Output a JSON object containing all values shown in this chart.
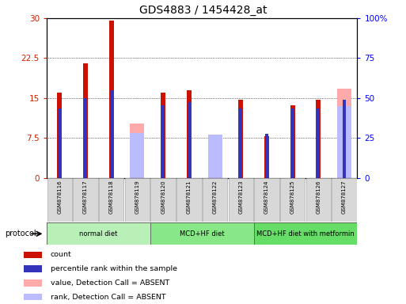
{
  "title": "GDS4883 / 1454428_at",
  "samples": [
    "GSM878116",
    "GSM878117",
    "GSM878118",
    "GSM878119",
    "GSM878120",
    "GSM878121",
    "GSM878122",
    "GSM878123",
    "GSM878124",
    "GSM878125",
    "GSM878126",
    "GSM878127"
  ],
  "count_values": [
    16.0,
    21.5,
    29.5,
    0.0,
    16.0,
    16.5,
    0.0,
    14.7,
    7.8,
    13.7,
    14.7,
    0.0
  ],
  "percentile_values": [
    13.0,
    15.0,
    16.5,
    0.0,
    13.7,
    14.3,
    0.0,
    13.0,
    0.0,
    13.0,
    13.0,
    14.7
  ],
  "absent_value_values": [
    0.0,
    0.0,
    0.0,
    10.2,
    0.0,
    0.0,
    7.9,
    0.0,
    0.0,
    0.0,
    0.0,
    16.7
  ],
  "absent_rank_values": [
    0.0,
    0.0,
    0.0,
    28.0,
    0.0,
    0.0,
    27.0,
    0.0,
    0.0,
    0.0,
    0.0,
    45.0
  ],
  "absent_blue_dot_values": [
    0.0,
    0.0,
    0.0,
    0.0,
    0.0,
    0.0,
    0.0,
    0.0,
    27.5,
    0.0,
    0.0,
    0.0
  ],
  "protocols": [
    {
      "label": "normal diet",
      "start": 0,
      "end": 4,
      "color": "#b8f0b8"
    },
    {
      "label": "MCD+HF diet",
      "start": 4,
      "end": 8,
      "color": "#88e888"
    },
    {
      "label": "MCD+HF diet with metformin",
      "start": 8,
      "end": 12,
      "color": "#66dd66"
    }
  ],
  "ylim_left": [
    0,
    30
  ],
  "ylim_right": [
    0,
    100
  ],
  "yticks_left": [
    0,
    7.5,
    15,
    22.5,
    30
  ],
  "yticks_right": [
    0,
    25,
    50,
    75,
    100
  ],
  "ytick_labels_left": [
    "0",
    "7.5",
    "15",
    "22.5",
    "30"
  ],
  "ytick_labels_right": [
    "0",
    "25",
    "50",
    "75",
    "100%"
  ],
  "count_color": "#cc1100",
  "percentile_color": "#3333bb",
  "absent_value_color": "#ffaaaa",
  "absent_rank_color": "#bbbbff",
  "bg_color": "#ffffff"
}
